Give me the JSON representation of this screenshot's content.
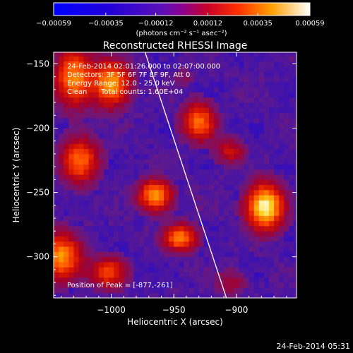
{
  "chart_data": {
    "type": "heatmap",
    "title": "Reconstructed RHESSI Image",
    "xlabel": "Heliocentric X (arcsec)",
    "ylabel": "Heliocentric Y (arcsec)",
    "xlim": [
      -1046,
      -852
    ],
    "ylim": [
      -332,
      -141
    ],
    "x_ticks": [
      -1000,
      -950,
      -900
    ],
    "y_ticks": [
      -150,
      -200,
      -250,
      -300
    ],
    "colorbar": {
      "range": [
        -0.00059,
        0.00059
      ],
      "tick_labels": [
        "-0.00059",
        "-0.00035",
        "-0.00012",
        "0.00012",
        "0.00035",
        "0.00059"
      ],
      "unit_label": "(photons cm⁻² s⁻¹ asec⁻²)"
    },
    "annotations": {
      "time_range": "24-Feb-2014 02:01:26.000 to 02:07:00.000",
      "detectors": "Detectors: 3F 5F 6F 7F 8F 9F, Att 0",
      "energy_range": "Energy Range: 12.0 - 25.0 keV",
      "clean": "Clean",
      "total_counts": "Total counts: 1.60E+04",
      "peak": "Position of Peak = [-877,-261]"
    },
    "peak": {
      "x": -877,
      "y": -261
    },
    "limb_line": [
      {
        "x": -974,
        "y": -138
      },
      {
        "x": -908,
        "y": -332
      }
    ],
    "sources": [
      {
        "x": -877,
        "y": -261,
        "sx": 10,
        "sy": 12,
        "amp": 1.0
      },
      {
        "x": -965,
        "y": -252,
        "sx": 9,
        "sy": 8,
        "amp": 0.78
      },
      {
        "x": -945,
        "y": -285,
        "sx": 9,
        "sy": 7,
        "amp": 0.72
      },
      {
        "x": -1000,
        "y": -165,
        "sx": 10,
        "sy": 12,
        "amp": 0.78
      },
      {
        "x": -1030,
        "y": -160,
        "sx": 10,
        "sy": 15,
        "amp": 0.72
      },
      {
        "x": -1025,
        "y": -225,
        "sx": 10,
        "sy": 12,
        "amp": 0.65
      },
      {
        "x": -1040,
        "y": -300,
        "sx": 11,
        "sy": 12,
        "amp": 0.75
      },
      {
        "x": -1002,
        "y": -312,
        "sx": 10,
        "sy": 8,
        "amp": 0.55
      },
      {
        "x": -930,
        "y": -195,
        "sx": 9,
        "sy": 10,
        "amp": 0.65
      },
      {
        "x": -905,
        "y": -218,
        "sx": 8,
        "sy": 7,
        "amp": 0.35
      },
      {
        "x": -942,
        "y": -160,
        "sx": 7,
        "sy": 6,
        "amp": 0.12
      },
      {
        "x": -905,
        "y": -320,
        "sx": 9,
        "sy": 7,
        "amp": 0.22
      }
    ]
  },
  "footer_timestamp": "24-Feb-2014 05:31"
}
